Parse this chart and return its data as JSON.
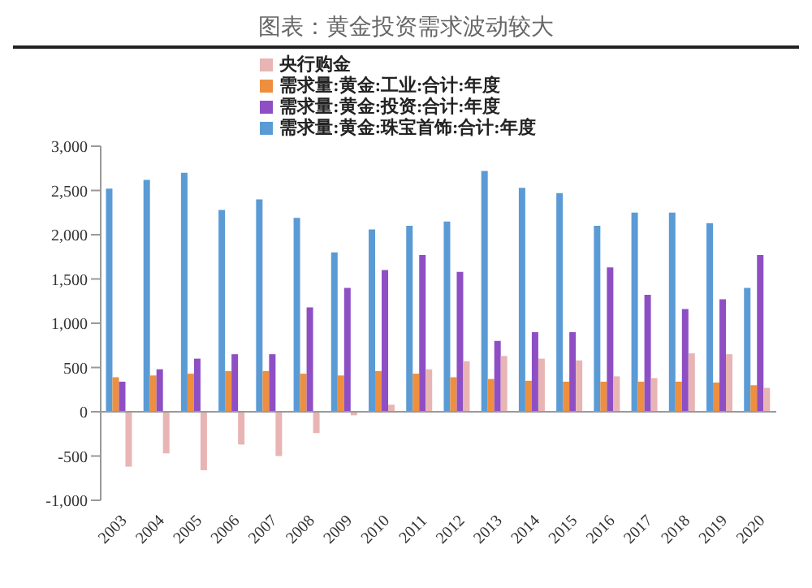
{
  "chart_data": {
    "type": "bar",
    "title": "图表：黄金投资需求波动较大",
    "categories": [
      "2003",
      "2004",
      "2005",
      "2006",
      "2007",
      "2008",
      "2009",
      "2010",
      "2011",
      "2012",
      "2013",
      "2014",
      "2015",
      "2016",
      "2017",
      "2018",
      "2019",
      "2020"
    ],
    "series": [
      {
        "name": "需求量:黄金:珠宝首饰:合计:年度",
        "color": "#5b9bd5",
        "values": [
          2520,
          2620,
          2700,
          2280,
          2400,
          2190,
          1800,
          2060,
          2100,
          2150,
          2720,
          2530,
          2470,
          2100,
          2250,
          2250,
          2130,
          1400
        ]
      },
      {
        "name": "需求量:黄金:工业:合计:年度",
        "color": "#ed8f3e",
        "values": [
          390,
          410,
          430,
          460,
          460,
          430,
          410,
          460,
          430,
          390,
          370,
          350,
          340,
          340,
          340,
          340,
          330,
          300
        ]
      },
      {
        "name": "需求量:黄金:投资:合计:年度",
        "color": "#8e4fc4",
        "values": [
          340,
          480,
          600,
          650,
          650,
          1180,
          1400,
          1600,
          1770,
          1580,
          800,
          900,
          900,
          1630,
          1320,
          1160,
          1270,
          1770
        ]
      },
      {
        "name": "央行购金",
        "color": "#e8b4b4",
        "values": [
          -620,
          -470,
          -660,
          -370,
          -500,
          -240,
          -40,
          80,
          480,
          570,
          630,
          600,
          580,
          400,
          380,
          660,
          650,
          270
        ]
      }
    ],
    "ylim": [
      -1000,
      3000
    ],
    "yticks": [
      {
        "value": -1000,
        "label": "-1,000"
      },
      -500,
      0,
      500,
      {
        "value": 1000,
        "label": "1,000"
      },
      {
        "value": 1500,
        "label": "1,500"
      },
      {
        "value": 2000,
        "label": "2,000"
      },
      {
        "value": 2500,
        "label": "2,500"
      },
      {
        "value": 3000,
        "label": "3,000"
      }
    ],
    "legend": "top"
  }
}
